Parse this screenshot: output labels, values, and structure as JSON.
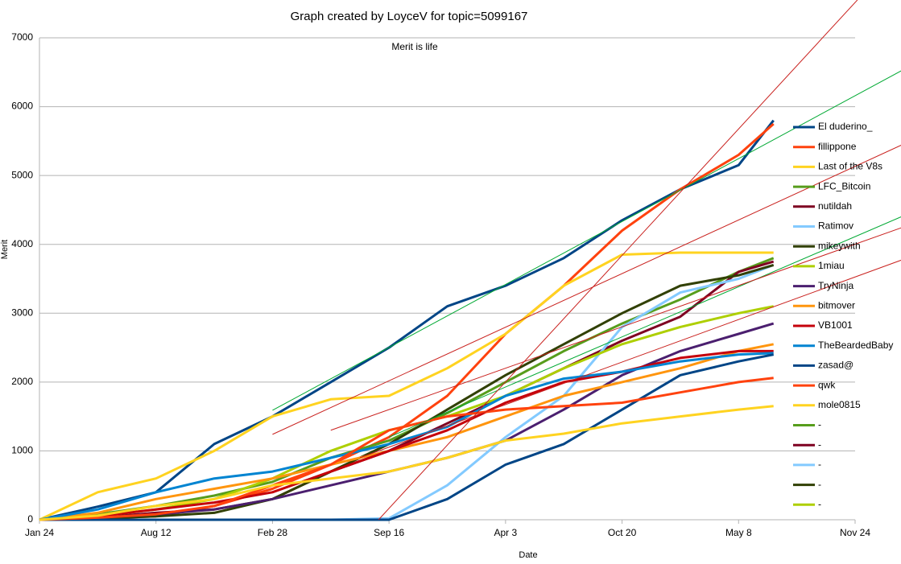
{
  "chart_data": {
    "type": "line",
    "title": "Graph created by LoyceV for topic=5099167",
    "subtitle": "Merit is life",
    "xlabel": "Date",
    "ylabel": "Merit",
    "xlim": [
      0,
      1400
    ],
    "ylim": [
      0,
      7000
    ],
    "xticks": [
      {
        "value": 0,
        "label": "Jan 24"
      },
      {
        "value": 200,
        "label": "Aug 12"
      },
      {
        "value": 400,
        "label": "Feb 28"
      },
      {
        "value": 600,
        "label": "Sep 16"
      },
      {
        "value": 800,
        "label": "Apr 3"
      },
      {
        "value": 1000,
        "label": "Oct 20"
      },
      {
        "value": 1200,
        "label": "May 8"
      },
      {
        "value": 1400,
        "label": "Nov 24"
      }
    ],
    "yticks": [
      0,
      1000,
      2000,
      3000,
      4000,
      5000,
      6000,
      7000
    ],
    "grid": true,
    "x": [
      0,
      100,
      200,
      300,
      400,
      500,
      600,
      700,
      800,
      900,
      1000,
      1100,
      1200,
      1260
    ],
    "series": [
      {
        "name": "El duderino_",
        "color": "#004586",
        "values": [
          0,
          190,
          400,
          1100,
          1500,
          2000,
          2500,
          3100,
          3400,
          3800,
          4350,
          4800,
          5150,
          5800
        ]
      },
      {
        "name": "fillippone",
        "color": "#ff420e",
        "values": [
          0,
          20,
          50,
          200,
          450,
          800,
          1200,
          1800,
          2700,
          3400,
          4200,
          4800,
          5300,
          5750
        ]
      },
      {
        "name": "Last of the V8s",
        "color": "#ffd320",
        "values": [
          0,
          400,
          600,
          1000,
          1500,
          1750,
          1800,
          2200,
          2700,
          3400,
          3850,
          3880,
          3880,
          3880
        ]
      },
      {
        "name": "LFC_Bitcoin",
        "color": "#579d1c",
        "values": [
          0,
          80,
          200,
          350,
          550,
          900,
          1150,
          1550,
          2000,
          2450,
          2850,
          3200,
          3600,
          3800
        ]
      },
      {
        "name": "nutildah",
        "color": "#7e0021",
        "values": [
          0,
          30,
          100,
          150,
          300,
          700,
          1000,
          1400,
          1800,
          2200,
          2600,
          2950,
          3600,
          3750
        ]
      },
      {
        "name": "Ratimov",
        "color": "#83caff",
        "values": [
          0,
          0,
          0,
          0,
          0,
          0,
          20,
          500,
          1200,
          1800,
          2800,
          3300,
          3500,
          3700
        ]
      },
      {
        "name": "mikeywith",
        "color": "#314004",
        "values": [
          0,
          20,
          50,
          100,
          300,
          700,
          1100,
          1600,
          2100,
          2550,
          3000,
          3400,
          3550,
          3700
        ]
      },
      {
        "name": "1miau",
        "color": "#aecf00",
        "values": [
          0,
          50,
          150,
          300,
          600,
          1000,
          1300,
          1500,
          1800,
          2200,
          2550,
          2800,
          3000,
          3100
        ]
      },
      {
        "name": "TryNinja",
        "color": "#4b1f6f",
        "values": [
          0,
          30,
          80,
          150,
          300,
          500,
          700,
          900,
          1150,
          1600,
          2100,
          2450,
          2700,
          2850
        ]
      },
      {
        "name": "bitmover",
        "color": "#ff950e",
        "values": [
          0,
          100,
          300,
          450,
          600,
          800,
          1000,
          1200,
          1500,
          1800,
          2000,
          2200,
          2450,
          2550
        ]
      },
      {
        "name": "VB1001",
        "color": "#c5000b",
        "values": [
          0,
          50,
          150,
          250,
          400,
          700,
          1000,
          1300,
          1700,
          2000,
          2150,
          2350,
          2450,
          2450
        ]
      },
      {
        "name": "TheBeardedBaby",
        "color": "#0084d1",
        "values": [
          0,
          150,
          400,
          600,
          700,
          900,
          1100,
          1350,
          1800,
          2050,
          2150,
          2300,
          2400,
          2420
        ]
      },
      {
        "name": "zasad@",
        "color": "#004586",
        "values": [
          0,
          0,
          0,
          0,
          0,
          0,
          0,
          300,
          800,
          1100,
          1600,
          2100,
          2300,
          2400
        ]
      },
      {
        "name": "qwk",
        "color": "#ff420e",
        "values": [
          0,
          30,
          80,
          200,
          500,
          800,
          1300,
          1500,
          1600,
          1650,
          1700,
          1850,
          2000,
          2060
        ]
      },
      {
        "name": "mole0815",
        "color": "#ffd320",
        "values": [
          0,
          60,
          200,
          300,
          500,
          600,
          700,
          900,
          1150,
          1250,
          1400,
          1500,
          1600,
          1650
        ]
      },
      {
        "name": "-",
        "color": "#579d1c",
        "values": [
          null,
          null,
          null,
          null,
          null,
          null,
          null,
          null,
          null,
          null,
          null,
          null,
          null,
          null
        ]
      },
      {
        "name": "-",
        "color": "#7e0021",
        "values": [
          null,
          null,
          null,
          null,
          null,
          null,
          null,
          null,
          null,
          null,
          null,
          null,
          null,
          null
        ]
      },
      {
        "name": "-",
        "color": "#83caff",
        "values": [
          null,
          null,
          null,
          null,
          null,
          null,
          null,
          null,
          null,
          null,
          null,
          null,
          null,
          null
        ]
      },
      {
        "name": "-",
        "color": "#314004",
        "values": [
          null,
          null,
          null,
          null,
          null,
          null,
          null,
          null,
          null,
          null,
          null,
          null,
          null,
          null
        ]
      },
      {
        "name": "-",
        "color": "#aecf00",
        "values": [
          null,
          null,
          null,
          null,
          null,
          null,
          null,
          null,
          null,
          null,
          null,
          null,
          null,
          null
        ]
      }
    ],
    "trendlines": [
      {
        "color": "#00a933",
        "x": [
          400,
          1479
        ],
        "values": [
          1590,
          6520
        ]
      },
      {
        "color": "#00a933",
        "x": [
          600,
          1479
        ],
        "values": [
          1200,
          4400
        ]
      },
      {
        "color": "#c9211e",
        "x": [
          582,
          1404
        ],
        "values": [
          0,
          7550
        ]
      },
      {
        "color": "#c9211e",
        "x": [
          400,
          1479
        ],
        "values": [
          1240,
          5440
        ]
      },
      {
        "color": "#c9211e",
        "x": [
          500,
          1479
        ],
        "values": [
          1300,
          4240
        ]
      },
      {
        "color": "#c9211e",
        "x": [
          550,
          1479
        ],
        "values": [
          900,
          3770
        ]
      }
    ]
  }
}
